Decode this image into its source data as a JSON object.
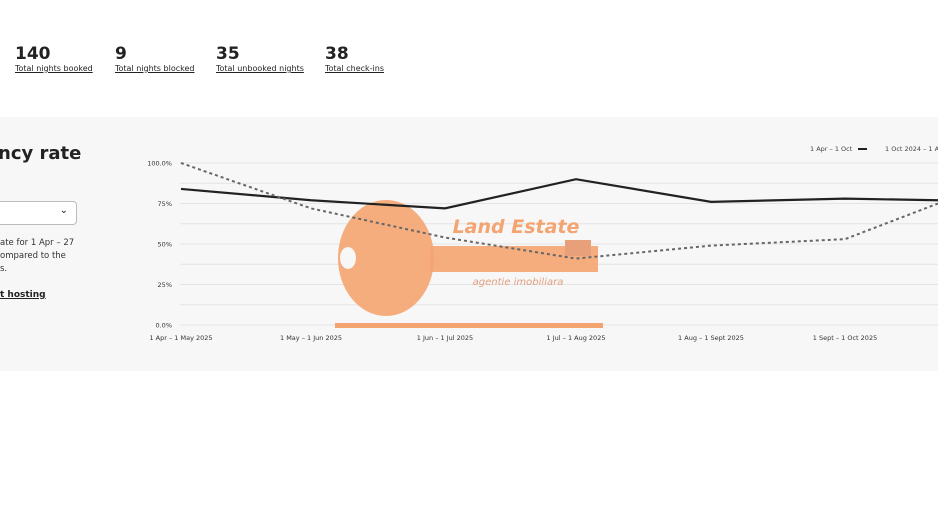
{
  "stats": [
    {
      "value": "140",
      "label": "Total nights booked"
    },
    {
      "value": "9",
      "label": "Total nights blocked"
    },
    {
      "value": "35",
      "label": "Total unbooked nights"
    },
    {
      "value": "38",
      "label": "Total check-ins"
    }
  ],
  "panel": {
    "title": "ncy rate",
    "select_value": "",
    "description_lines": [
      "ate for 1 Apr – 27",
      "ompared to the",
      "s."
    ],
    "link": "t hosting"
  },
  "watermark": {
    "line1": "Land Estate",
    "line2": "agentie imobiliara",
    "color": "#f4a470"
  },
  "chart_data": {
    "type": "line",
    "categories": [
      "1 Apr – 1 May 2025",
      "1 May – 1 Jun 2025",
      "1 Jun – 1 Jul 2025",
      "1 Jul – 1 Aug 2025",
      "1 Aug – 1 Sept 2025",
      "1 Sept – 1 Oct 2025",
      ""
    ],
    "y_ticks": [
      "0.0%",
      "25%",
      "50%",
      "75%",
      "100.0%"
    ],
    "ylim": [
      0,
      100
    ],
    "grid": true,
    "legend_position": "top-right",
    "series": [
      {
        "name": "1 Apr – 1 Oct",
        "style": "solid",
        "color": "#222222",
        "values": [
          84,
          77,
          72,
          90,
          76,
          78,
          77
        ]
      },
      {
        "name": "1 Oct 2024 – 1 Ap",
        "style": "dotted",
        "color": "#666666",
        "values": [
          100,
          72,
          54,
          41,
          49,
          53,
          75
        ]
      }
    ]
  }
}
